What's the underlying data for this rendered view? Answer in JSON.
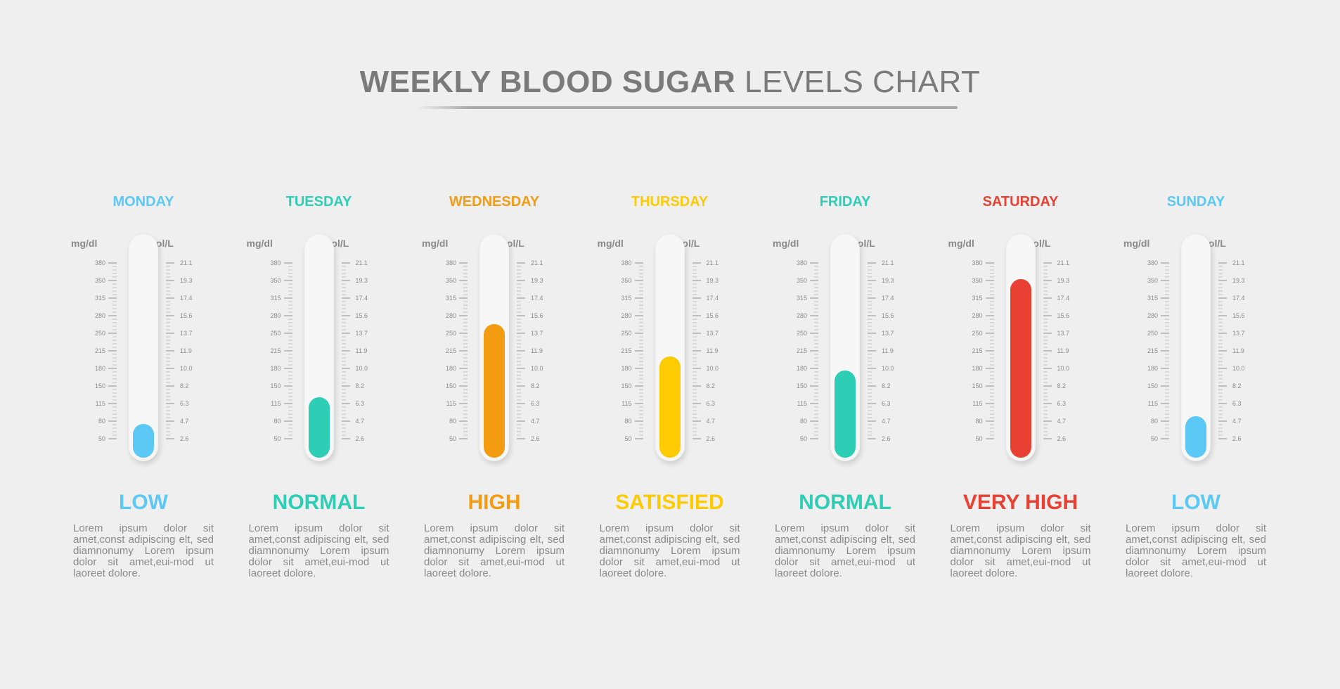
{
  "title": {
    "bold": "WEEKLY BLOOD SUGAR",
    "light": "LEVELS CHART"
  },
  "chart_data": {
    "type": "bar",
    "title": "WEEKLY BLOOD SUGAR LEVELS CHART",
    "categories": [
      "MONDAY",
      "TUESDAY",
      "WEDNESDAY",
      "THURSDAY",
      "FRIDAY",
      "SATURDAY",
      "SUNDAY"
    ],
    "values": [
      78,
      128,
      265,
      205,
      178,
      350,
      92
    ],
    "value_unit": "mg/dl",
    "left_axis": {
      "label": "mg/dl",
      "ticks": [
        "380",
        "350",
        "315",
        "280",
        "250",
        "215",
        "180",
        "150",
        "115",
        "80",
        "50"
      ]
    },
    "right_axis": {
      "label": "mmol/L",
      "ticks": [
        "21.1",
        "19.3",
        "17.4",
        "15.6",
        "13.7",
        "11.9",
        "10.0",
        "8.2",
        "6.3",
        "4.7",
        "2.6"
      ]
    },
    "ylim": [
      50,
      380
    ],
    "status": [
      "LOW",
      "NORMAL",
      "HIGH",
      "SATISFIED",
      "NORMAL",
      "VERY HIGH",
      "LOW"
    ],
    "colors": [
      "#5bc8f5",
      "#2ecdb6",
      "#f39c12",
      "#fdcb02",
      "#2ecdb6",
      "#e84133",
      "#5bc8f5"
    ],
    "description": "Lorem ipsum dolor sit amet,const adipiscing elt, sed diamnonumy Lorem ipsum dolor sit amet,eui-mod ut laoreet dolore."
  }
}
